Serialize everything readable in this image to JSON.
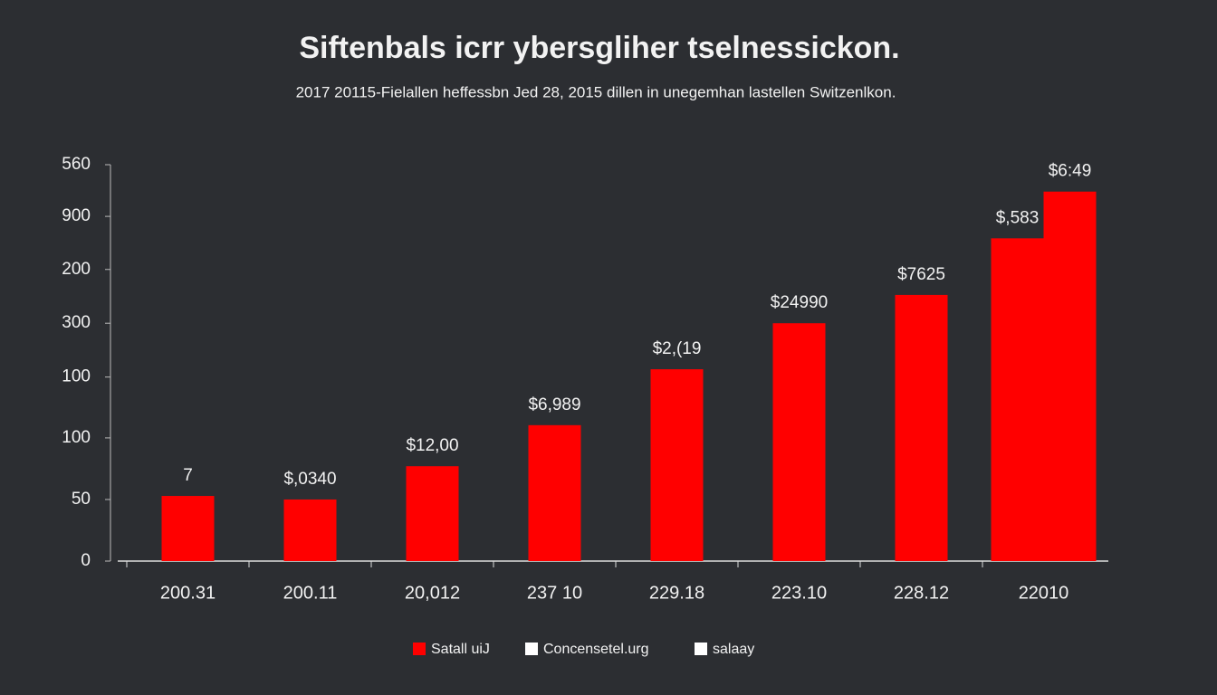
{
  "chart_data": {
    "type": "bar",
    "title": "Siftenbals icrr ybersgliher tselnessickon.",
    "subtitle": "2017 20115-Fielallen heffessbn Jed 28, 2015 dillen in unegemhan lastellen Switzenlkon.",
    "categories": [
      "200.31",
      "200.11",
      "20,012",
      "237 10",
      "229.18",
      "223.10",
      "228.12",
      "22010"
    ],
    "series": [
      {
        "color": "#ff0000",
        "values": [
          92,
          87,
          134,
          192,
          271,
          336,
          376,
          456
        ]
      },
      {
        "color": "#ff0000",
        "values": [
          null,
          null,
          null,
          null,
          null,
          null,
          null,
          522
        ]
      }
    ],
    "annotations": [
      "7",
      "$,0340",
      "$12,00",
      "$6,989",
      "$2,(19",
      "$24990",
      "$7625",
      "$,583",
      "$6:49"
    ],
    "ylim": [
      0,
      560
    ],
    "yticks": [
      0,
      {
        "value": 87,
        "label": "50"
      },
      {
        "value": 174,
        "label": "100"
      },
      {
        "value": 260,
        "label": "100"
      },
      {
        "value": 336,
        "label": "300"
      },
      {
        "value": 412,
        "label": "200"
      },
      {
        "value": 487,
        "label": "900"
      },
      560
    ],
    "grid": false,
    "legend": [
      {
        "label": "Satall uiJ",
        "color": "#ff0000"
      },
      {
        "label": "Concensetel.urg",
        "color": "#ffffff"
      },
      {
        "label": "salaay",
        "color": "#ffffff"
      }
    ]
  }
}
